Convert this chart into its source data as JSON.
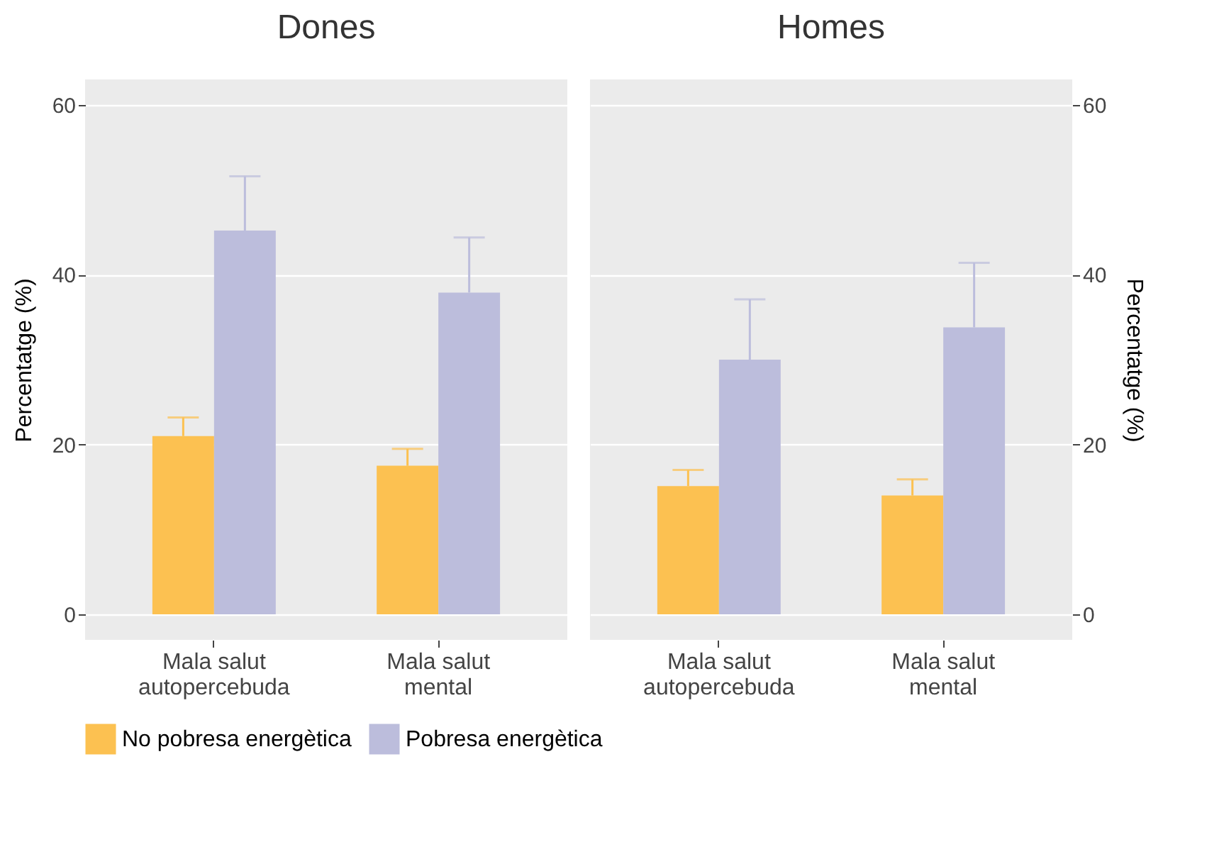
{
  "chart_data": [
    {
      "type": "bar",
      "title": "Dones",
      "categories": [
        "Mala salut autopercebuda",
        "Mala salut mental"
      ],
      "ylabel": "Percentatge (%)",
      "ylim": [
        -3,
        63
      ],
      "yticks": [
        0,
        20,
        40,
        60
      ],
      "grid": "y",
      "legend": "bottom",
      "tick_labels": "xy",
      "series": [
        {
          "name": "No pobresa energètica",
          "color": "#fcc151",
          "values": [
            21.0,
            17.5
          ],
          "errors": [
            2.2,
            2.0
          ]
        },
        {
          "name": "Pobresa energètica",
          "color": "#bcbddc",
          "values": [
            45.2,
            37.9
          ],
          "errors": [
            6.4,
            6.5
          ]
        }
      ]
    },
    {
      "type": "bar",
      "title": "Homes",
      "categories": [
        "Mala salut autopercebuda",
        "Mala salut mental"
      ],
      "y2label": "Percentatge (%)",
      "y2lim": [
        -3,
        63
      ],
      "y2ticks": [
        0,
        20,
        40,
        60
      ],
      "grid": "y",
      "legend": "bottom",
      "series": [
        {
          "name": "No pobresa energètica",
          "color": "#fcc151",
          "values": [
            15.1,
            14.0
          ],
          "errors": [
            1.9,
            1.9
          ],
          "axis": "y2"
        },
        {
          "name": "Pobresa energètica",
          "color": "#bcbddc",
          "values": [
            30.0,
            33.8
          ],
          "errors": [
            7.1,
            7.6
          ],
          "axis": "y2"
        }
      ]
    }
  ]
}
